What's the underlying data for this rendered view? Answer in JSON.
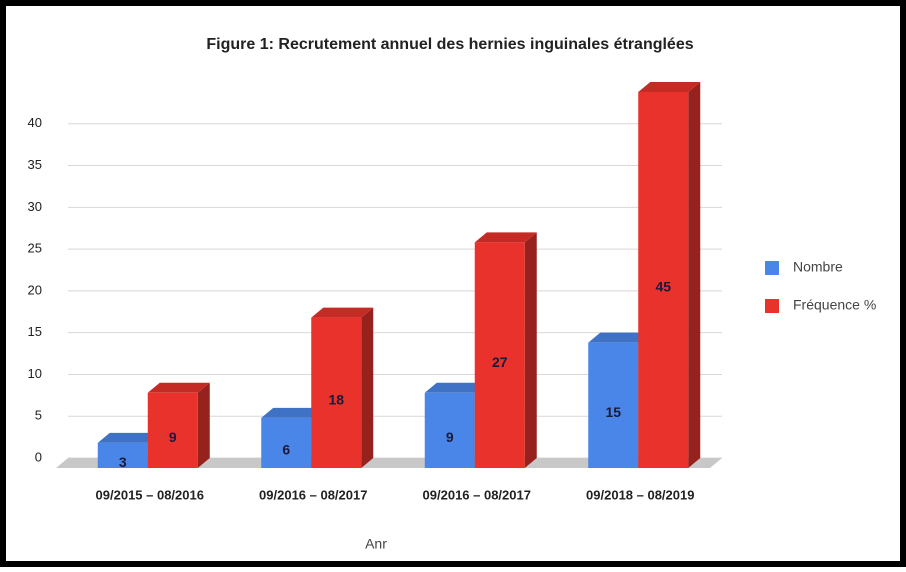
{
  "chart_data": {
    "type": "bar3d",
    "title": "Figure 1: Recrutement annuel des hernies inguinales étranglées",
    "categories": [
      "09/2015 – 08/2016",
      "09/2016 – 08/2017",
      "09/2016 – 08/2017",
      "09/2018 – 08/2019"
    ],
    "series": [
      {
        "name": "Nombre",
        "color": "#4a86e8",
        "values": [
          3,
          6,
          9,
          15
        ]
      },
      {
        "name": "Fréquence %",
        "color": "#e8322b",
        "values": [
          9,
          18,
          27,
          45
        ]
      }
    ],
    "xlabel": "Anr",
    "ylim": [
      0,
      45
    ],
    "yticks": [
      0,
      5,
      10,
      15,
      20,
      25,
      30,
      35,
      40
    ],
    "grid": true,
    "legend": "right"
  }
}
